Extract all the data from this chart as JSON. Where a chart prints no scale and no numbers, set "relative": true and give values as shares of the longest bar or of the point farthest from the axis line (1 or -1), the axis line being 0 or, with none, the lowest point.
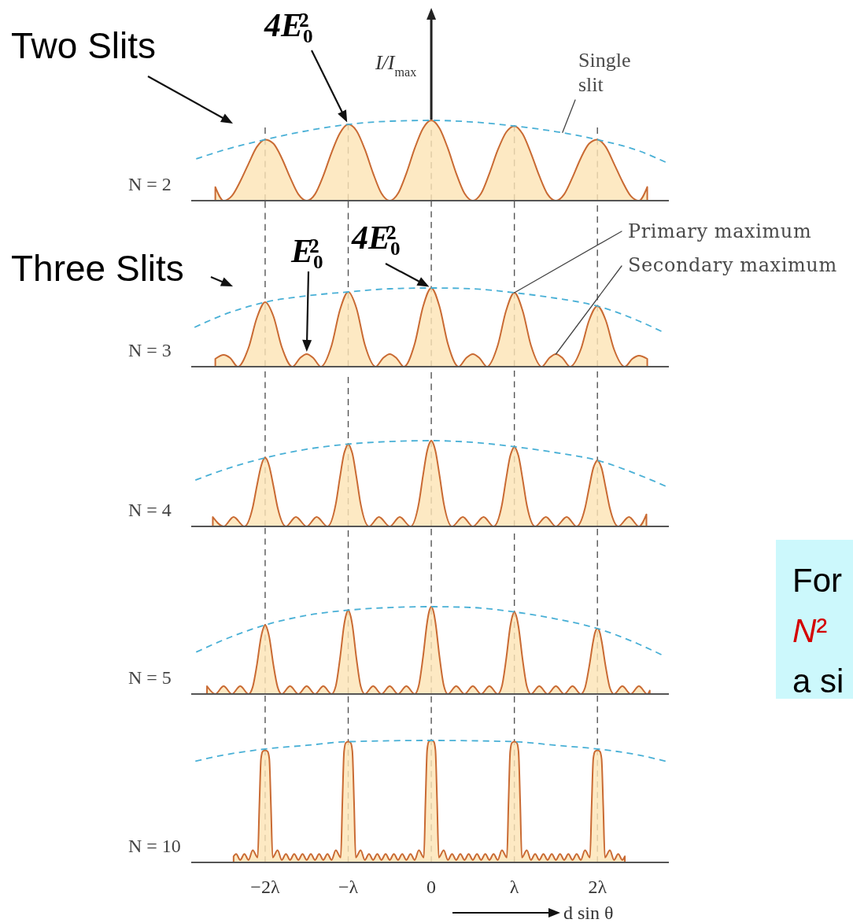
{
  "chart_data": [
    {
      "type": "area",
      "title": "N = 2",
      "ylabel": "I/I$_{max}$",
      "relative": true,
      "xlim": [
        -2.89,
        2.86
      ],
      "tick_labels": false,
      "series": [
        {
          "type": "area",
          "color": "#c96a33",
          "x": [
            -2.6,
            -2.5,
            -2.4,
            -2.3,
            -2.2,
            -2.1,
            -2,
            -1.9,
            -1.8,
            -1.7,
            -1.6,
            -1.5,
            -1.4,
            -1.3,
            -1.2,
            -1.1,
            -1,
            -0.9,
            -0.8,
            -0.7,
            -0.6,
            -0.5,
            -0.4,
            -0.3,
            -0.2,
            -0.1,
            0,
            0.1,
            0.2,
            0.3,
            0.4,
            0.5,
            0.6,
            0.7,
            0.8,
            0.9,
            1,
            1.1,
            1.2,
            1.3,
            1.4,
            1.5,
            1.6,
            1.7,
            1.8,
            1.9,
            2,
            2.1,
            2.2,
            2.3,
            2.4,
            2.5,
            2.6
          ],
          "values": [
            0.17,
            0,
            0.06,
            0.24,
            0.46,
            0.67,
            0.76,
            0.71,
            0.53,
            0.29,
            0.08,
            0,
            0.08,
            0.31,
            0.6,
            0.84,
            0.95,
            0.87,
            0.64,
            0.34,
            0.09,
            0,
            0.09,
            0.34,
            0.65,
            0.9,
            1,
            0.9,
            0.65,
            0.34,
            0.09,
            0,
            0.09,
            0.34,
            0.63,
            0.85,
            0.93,
            0.83,
            0.59,
            0.31,
            0.08,
            0,
            0.08,
            0.29,
            0.53,
            0.71,
            0.76,
            0.67,
            0.46,
            0.24,
            0.06,
            0,
            0.17
          ]
        },
        {
          "type": "line",
          "color": "#49b0d6",
          "line_style": "dashed",
          "x": [
            -2.83,
            -2.5,
            -2,
            -1.5,
            -1,
            -0.5,
            0,
            0.5,
            1,
            1.5,
            2,
            2.5,
            2.82
          ],
          "values": [
            0.52,
            0.63,
            0.76,
            0.87,
            0.95,
            0.99,
            1,
            0.98,
            0.93,
            0.86,
            0.76,
            0.62,
            0.48
          ]
        }
      ],
      "ref_lines": [
        {
          "axis": "x",
          "value": -2,
          "color": "#555555",
          "line_style": "dashed"
        },
        {
          "axis": "x",
          "value": -1,
          "color": "#555555",
          "line_style": "dashed"
        },
        {
          "axis": "x",
          "value": 0,
          "color": "#555555",
          "line_style": "dashed"
        },
        {
          "axis": "x",
          "value": 1,
          "color": "#555555",
          "line_style": "dashed"
        },
        {
          "axis": "x",
          "value": 2,
          "color": "#555555",
          "line_style": "dashed"
        }
      ],
      "annotations": [
        "Two Slits",
        {
          "text": "4E₀²",
          "x": -1,
          "y": 0.95
        },
        {
          "text": "Single slit",
          "x": 1.58,
          "y": 0.85
        }
      ]
    },
    {
      "type": "area",
      "title": "N = 3",
      "relative": true,
      "xlim": [
        -2.89,
        2.86
      ],
      "tick_labels": false,
      "series": [
        {
          "type": "area",
          "color": "#c96a33",
          "x": [
            -2.6,
            -2.5,
            -2.42,
            -2.33,
            -2.2,
            -2.1,
            -2,
            -1.9,
            -1.8,
            -1.67,
            -1.58,
            -1.5,
            -1.42,
            -1.33,
            -1.2,
            -1.1,
            -1,
            -0.9,
            -0.8,
            -0.67,
            -0.58,
            -0.5,
            -0.42,
            -0.33,
            -0.2,
            -0.1,
            0,
            0.1,
            0.2,
            0.33,
            0.42,
            0.5,
            0.58,
            0.67,
            0.8,
            0.9,
            1,
            1.1,
            1.2,
            1.33,
            1.42,
            1.5,
            1.58,
            1.67,
            1.8,
            1.9,
            2,
            2.1,
            2.2,
            2.33,
            2.42,
            2.5,
            2.6
          ],
          "values": [
            0.1,
            0.15,
            0.11,
            0,
            0.24,
            0.62,
            0.82,
            0.64,
            0.25,
            0,
            0.11,
            0.16,
            0.11,
            0,
            0.27,
            0.72,
            0.95,
            0.74,
            0.28,
            0,
            0.11,
            0.16,
            0.11,
            0,
            0.29,
            0.76,
            1,
            0.76,
            0.29,
            0,
            0.11,
            0.16,
            0.11,
            0,
            0.27,
            0.71,
            0.94,
            0.71,
            0.27,
            0,
            0.11,
            0.16,
            0.11,
            0,
            0.22,
            0.59,
            0.77,
            0.59,
            0.22,
            0,
            0.1,
            0.14,
            0.1
          ]
        },
        {
          "type": "line",
          "color": "#49b0d6",
          "line_style": "dashed",
          "x": [
            -2.85,
            -2.5,
            -2,
            -1.5,
            -1,
            -0.5,
            0,
            0.5,
            1,
            1.5,
            2,
            2.5,
            2.77
          ],
          "values": [
            0.5,
            0.66,
            0.82,
            0.9,
            0.95,
            0.99,
            1,
            0.99,
            0.94,
            0.87,
            0.77,
            0.58,
            0.45
          ]
        }
      ],
      "ref_lines": [
        {
          "axis": "x",
          "value": -2,
          "color": "#555555",
          "line_style": "dashed"
        },
        {
          "axis": "x",
          "value": -1,
          "color": "#555555",
          "line_style": "dashed"
        },
        {
          "axis": "x",
          "value": 0,
          "color": "#555555",
          "line_style": "dashed"
        },
        {
          "axis": "x",
          "value": 1,
          "color": "#555555",
          "line_style": "dashed"
        },
        {
          "axis": "x",
          "value": 2,
          "color": "#555555",
          "line_style": "dashed"
        }
      ],
      "annotations": [
        "Three Slits",
        {
          "text": "E₀²",
          "x": -1.5,
          "y": 0.16
        },
        {
          "text": "4E₀²",
          "x": 0,
          "y": 1
        },
        {
          "text": "Primary maximum",
          "x": 1,
          "y": 0.94
        },
        {
          "text": "Secondary maximum",
          "x": 1.5,
          "y": 0.16
        }
      ]
    },
    {
      "type": "area",
      "title": "N = 4",
      "relative": true,
      "xlim": [
        -2.89,
        2.86
      ],
      "tick_labels": false,
      "series": [
        {
          "type": "area",
          "color": "#c96a33",
          "x": [
            -2.63,
            -2.5,
            -2.38,
            -2.25,
            -2.15,
            -2.1,
            -2.05,
            -2.03,
            -2,
            -1.97,
            -1.95,
            -1.9,
            -1.85,
            -1.75,
            -1.63,
            -1.5,
            -1.38,
            -1.25,
            -1.15,
            -1.1,
            -1.05,
            -1.03,
            -1,
            -0.97,
            -0.95,
            -0.9,
            -0.85,
            -0.75,
            -0.63,
            -0.5,
            -0.38,
            -0.25,
            -0.15,
            -0.1,
            -0.05,
            -0.03,
            0,
            0.03,
            0.05,
            0.1,
            0.15,
            0.25,
            0.38,
            0.5,
            0.63,
            0.75,
            0.85,
            0.9,
            0.95,
            0.97,
            1,
            1.03,
            1.05,
            1.1,
            1.15,
            1.25,
            1.38,
            1.5,
            1.63,
            1.75,
            1.85,
            1.9,
            1.95,
            1.97,
            2,
            2.03,
            2.05,
            2.1,
            2.15,
            2.25,
            2.38,
            2.5,
            2.59
          ],
          "values": [
            0.11,
            0,
            0.11,
            0,
            0.22,
            0.47,
            0.7,
            0.76,
            0.8,
            0.76,
            0.7,
            0.47,
            0.22,
            0,
            0.11,
            0,
            0.11,
            0,
            0.26,
            0.57,
            0.85,
            0.91,
            0.96,
            0.91,
            0.85,
            0.57,
            0.26,
            0,
            0.11,
            0,
            0.11,
            0,
            0.27,
            0.59,
            0.88,
            0.95,
            1,
            0.95,
            0.88,
            0.59,
            0.27,
            0,
            0.11,
            0,
            0.11,
            0,
            0.25,
            0.55,
            0.82,
            0.88,
            0.93,
            0.88,
            0.82,
            0.55,
            0.25,
            0,
            0.11,
            0,
            0.11,
            0,
            0.21,
            0.45,
            0.68,
            0.73,
            0.77,
            0.73,
            0.68,
            0.45,
            0.21,
            0,
            0.11,
            0,
            0.14
          ]
        },
        {
          "type": "line",
          "color": "#49b0d6",
          "line_style": "dashed",
          "x": [
            -2.84,
            -2.5,
            -2,
            -1.5,
            -1,
            -0.5,
            0,
            0.5,
            1,
            1.5,
            2,
            2.5,
            2.82
          ],
          "values": [
            0.54,
            0.66,
            0.8,
            0.9,
            0.96,
            0.99,
            1,
            0.98,
            0.93,
            0.86,
            0.77,
            0.6,
            0.47
          ]
        }
      ],
      "ref_lines": [
        {
          "axis": "x",
          "value": -2,
          "color": "#555555",
          "line_style": "dashed"
        },
        {
          "axis": "x",
          "value": -1,
          "color": "#555555",
          "line_style": "dashed"
        },
        {
          "axis": "x",
          "value": 0,
          "color": "#555555",
          "line_style": "dashed"
        },
        {
          "axis": "x",
          "value": 1,
          "color": "#555555",
          "line_style": "dashed"
        },
        {
          "axis": "x",
          "value": 2,
          "color": "#555555",
          "line_style": "dashed"
        }
      ]
    },
    {
      "type": "area",
      "title": "N = 5",
      "relative": true,
      "xlim": [
        -2.89,
        2.86
      ],
      "tick_labels": false,
      "series": [
        {
          "type": "area",
          "color": "#c96a33",
          "x": [
            -2.7,
            -2.6,
            -2.5,
            -2.4,
            -2.3,
            -2.2,
            -2.15,
            -2.1,
            -2.05,
            -2.03,
            -2,
            -1.97,
            -1.95,
            -1.9,
            -1.85,
            -1.8,
            -1.7,
            -1.6,
            -1.5,
            -1.4,
            -1.3,
            -1.2,
            -1.15,
            -1.1,
            -1.05,
            -1.03,
            -1,
            -0.97,
            -0.95,
            -0.9,
            -0.85,
            -0.8,
            -0.7,
            -0.6,
            -0.5,
            -0.4,
            -0.3,
            -0.2,
            -0.15,
            -0.1,
            -0.05,
            -0.03,
            0,
            0.03,
            0.05,
            0.1,
            0.15,
            0.2,
            0.3,
            0.4,
            0.5,
            0.6,
            0.7,
            0.8,
            0.85,
            0.9,
            0.95,
            0.97,
            1,
            1.03,
            1.05,
            1.1,
            1.15,
            1.2,
            1.3,
            1.4,
            1.5,
            1.6,
            1.7,
            1.8,
            1.85,
            1.9,
            1.95,
            1.97,
            2,
            2.03,
            2.05,
            2.1,
            2.15,
            2.2,
            2.3,
            2.4,
            2.5,
            2.6,
            2.63
          ],
          "values": [
            0.09,
            0,
            0.09,
            0,
            0.09,
            0,
            0.08,
            0.33,
            0.65,
            0.73,
            0.79,
            0.73,
            0.65,
            0.33,
            0.08,
            0,
            0.09,
            0,
            0.09,
            0,
            0.09,
            0,
            0.09,
            0.4,
            0.79,
            0.89,
            0.96,
            0.89,
            0.79,
            0.4,
            0.09,
            0,
            0.09,
            0,
            0.09,
            0,
            0.09,
            0,
            0.1,
            0.42,
            0.82,
            0.93,
            1,
            0.93,
            0.82,
            0.42,
            0.1,
            0,
            0.09,
            0,
            0.09,
            0,
            0.09,
            0,
            0.09,
            0.39,
            0.77,
            0.87,
            0.94,
            0.87,
            0.77,
            0.39,
            0.09,
            0,
            0.09,
            0,
            0.09,
            0,
            0.09,
            0,
            0.07,
            0.31,
            0.61,
            0.7,
            0.75,
            0.7,
            0.61,
            0.31,
            0.07,
            0,
            0.09,
            0,
            0.09,
            0,
            0.04
          ]
        },
        {
          "type": "line",
          "color": "#49b0d6",
          "line_style": "dashed",
          "x": [
            -2.83,
            -2.5,
            -2,
            -1.5,
            -1,
            -0.5,
            0,
            0.5,
            1,
            1.5,
            2,
            2.5,
            2.77
          ],
          "values": [
            0.48,
            0.62,
            0.79,
            0.9,
            0.96,
            0.99,
            1,
            0.99,
            0.94,
            0.86,
            0.75,
            0.57,
            0.45
          ]
        }
      ],
      "ref_lines": [
        {
          "axis": "x",
          "value": -2,
          "color": "#555555",
          "line_style": "dashed"
        },
        {
          "axis": "x",
          "value": -1,
          "color": "#555555",
          "line_style": "dashed"
        },
        {
          "axis": "x",
          "value": 0,
          "color": "#555555",
          "line_style": "dashed"
        },
        {
          "axis": "x",
          "value": 1,
          "color": "#555555",
          "line_style": "dashed"
        },
        {
          "axis": "x",
          "value": 2,
          "color": "#555555",
          "line_style": "dashed"
        }
      ]
    },
    {
      "type": "area",
      "title": "N = 10",
      "xlabel": "d sin θ",
      "relative": true,
      "xlim": [
        -2.89,
        2.86
      ],
      "xticks": [
        {
          "value": -2,
          "label": "−2λ"
        },
        {
          "value": -1,
          "label": "−λ"
        },
        0,
        {
          "value": 1,
          "label": "λ"
        },
        {
          "value": 2,
          "label": "2λ"
        }
      ],
      "tick_labels": "x",
      "series": [
        {
          "type": "area",
          "color": "#c96a33",
          "x": [
            -2.38,
            -2.35,
            -2.3,
            -2.25,
            -2.2,
            -2.15,
            -2.09,
            -2.07,
            -2.05,
            -2.03,
            -2,
            -1.97,
            -1.95,
            -1.93,
            -1.91,
            -1.85,
            -1.8,
            -1.75,
            -1.7,
            -1.65,
            -1.6,
            -1.55,
            -1.5,
            -1.45,
            -1.4,
            -1.35,
            -1.3,
            -1.25,
            -1.2,
            -1.15,
            -1.09,
            -1.07,
            -1.05,
            -1.03,
            -1,
            -0.97,
            -0.95,
            -0.93,
            -0.91,
            -0.85,
            -0.8,
            -0.75,
            -0.7,
            -0.65,
            -0.6,
            -0.55,
            -0.5,
            -0.45,
            -0.4,
            -0.35,
            -0.3,
            -0.25,
            -0.2,
            -0.15,
            -0.09,
            -0.07,
            -0.05,
            -0.03,
            0,
            0.03,
            0.05,
            0.07,
            0.09,
            0.15,
            0.2,
            0.25,
            0.3,
            0.35,
            0.4,
            0.45,
            0.5,
            0.55,
            0.6,
            0.65,
            0.7,
            0.75,
            0.8,
            0.85,
            0.91,
            0.93,
            0.95,
            0.97,
            1,
            1.03,
            1.05,
            1.07,
            1.09,
            1.15,
            1.2,
            1.25,
            1.3,
            1.35,
            1.4,
            1.45,
            1.5,
            1.55,
            1.6,
            1.65,
            1.7,
            1.75,
            1.8,
            1.85,
            1.91,
            1.93,
            1.95,
            1.97,
            2,
            2.03,
            2.05,
            2.07,
            2.09,
            2.15,
            2.2,
            2.25,
            2.3,
            2.33
          ],
          "values": [
            0.05,
            0.07,
            0.02,
            0.07,
            0.02,
            0.1,
            0.04,
            0.46,
            0.85,
            0.91,
            0.92,
            0.91,
            0.85,
            0.46,
            0.04,
            0.1,
            0.02,
            0.07,
            0.02,
            0.07,
            0.02,
            0.07,
            0.02,
            0.07,
            0.02,
            0.07,
            0.02,
            0.07,
            0.02,
            0.1,
            0.04,
            0.5,
            0.91,
            0.98,
            0.99,
            0.98,
            0.91,
            0.5,
            0.04,
            0.1,
            0.02,
            0.07,
            0.02,
            0.07,
            0.02,
            0.07,
            0.02,
            0.07,
            0.02,
            0.07,
            0.02,
            0.07,
            0.02,
            0.1,
            0.04,
            0.5,
            0.92,
            0.99,
            1,
            0.99,
            0.92,
            0.5,
            0.04,
            0.1,
            0.02,
            0.07,
            0.02,
            0.07,
            0.02,
            0.07,
            0.02,
            0.07,
            0.02,
            0.07,
            0.02,
            0.07,
            0.02,
            0.1,
            0.04,
            0.5,
            0.91,
            0.98,
            0.99,
            0.98,
            0.91,
            0.5,
            0.04,
            0.1,
            0.02,
            0.07,
            0.02,
            0.07,
            0.02,
            0.07,
            0.02,
            0.07,
            0.02,
            0.07,
            0.02,
            0.07,
            0.02,
            0.1,
            0.04,
            0.46,
            0.85,
            0.91,
            0.92,
            0.91,
            0.85,
            0.46,
            0.04,
            0.1,
            0.02,
            0.07,
            0.02,
            0.05
          ]
        },
        {
          "type": "line",
          "color": "#49b0d6",
          "line_style": "dashed",
          "x": [
            -2.84,
            -2.5,
            -2,
            -1.5,
            -1,
            0,
            1,
            1.5,
            2,
            2.5,
            2.82
          ],
          "values": [
            0.83,
            0.88,
            0.93,
            0.96,
            0.99,
            1,
            0.99,
            0.96,
            0.93,
            0.88,
            0.83
          ]
        }
      ],
      "ref_lines": [
        {
          "axis": "x",
          "value": -2,
          "color": "#555555",
          "line_style": "dashed"
        },
        {
          "axis": "x",
          "value": -1,
          "color": "#555555",
          "line_style": "dashed"
        },
        {
          "axis": "x",
          "value": 0,
          "color": "#555555",
          "line_style": "dashed"
        },
        {
          "axis": "x",
          "value": 1,
          "color": "#555555",
          "line_style": "dashed"
        },
        {
          "axis": "x",
          "value": 2,
          "color": "#555555",
          "line_style": "dashed"
        }
      ]
    },
    {
      "type": "other",
      "annotations": [
        "For",
        "N²",
        "a si"
      ]
    }
  ]
}
